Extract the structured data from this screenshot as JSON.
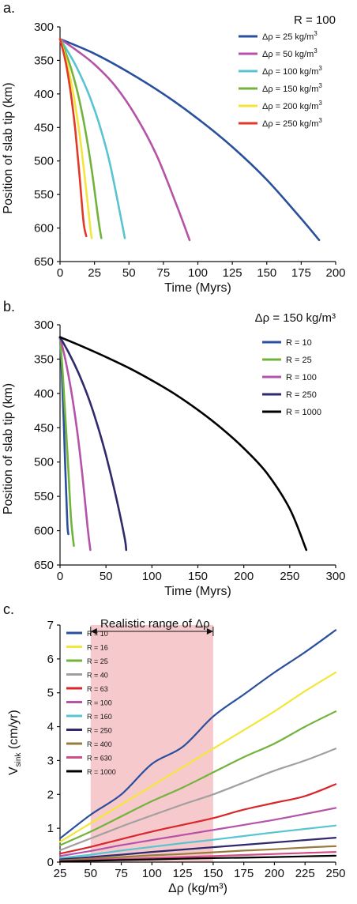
{
  "chart_data": [
    {
      "panel": "a.",
      "type": "line",
      "annotation": "R = 100",
      "xlabel": "Time (Myrs)",
      "ylabel": "Position of slab tip (km)",
      "xlim": [
        0,
        200
      ],
      "ylim": [
        300,
        650
      ],
      "y_inverted": true,
      "xticks": [
        0,
        25,
        50,
        75,
        100,
        125,
        150,
        175,
        200
      ],
      "yticks": [
        300,
        350,
        400,
        450,
        500,
        550,
        600,
        650
      ],
      "legend_position": "top-right",
      "series": [
        {
          "name": "Δρ = 25 kg/m³",
          "color": "#2a4f9c",
          "x": [
            0,
            25,
            50,
            75,
            100,
            125,
            150,
            175,
            188
          ],
          "y": [
            318,
            340,
            368,
            400,
            437,
            479,
            528,
            586,
            618
          ]
        },
        {
          "name": "Δρ = 50 kg/m³",
          "color": "#b553a8",
          "x": [
            0,
            12,
            25,
            40,
            55,
            70,
            85,
            94
          ],
          "y": [
            318,
            335,
            356,
            388,
            433,
            491,
            568,
            618
          ]
        },
        {
          "name": "Δρ = 100 kg/m³",
          "color": "#58c4d1",
          "x": [
            0,
            6,
            12,
            20,
            28,
            36,
            44,
            47
          ],
          "y": [
            318,
            338,
            360,
            396,
            442,
            502,
            583,
            615
          ]
        },
        {
          "name": "Δρ = 150 kg/m³",
          "color": "#72b33c",
          "x": [
            0,
            4,
            8,
            13,
            18,
            23,
            28,
            30
          ],
          "y": [
            318,
            338,
            362,
            400,
            450,
            513,
            590,
            615
          ]
        },
        {
          "name": "Δρ = 200 kg/m³",
          "color": "#f2e63a",
          "x": [
            0,
            3,
            6,
            10,
            14,
            18,
            22,
            23
          ],
          "y": [
            318,
            338,
            362,
            404,
            457,
            525,
            600,
            615
          ]
        },
        {
          "name": "Δρ = 250 kg/m³",
          "color": "#e0392a",
          "x": [
            0,
            2.5,
            5,
            8,
            11,
            14,
            17,
            19
          ],
          "y": [
            318,
            338,
            362,
            402,
            452,
            518,
            590,
            612
          ]
        }
      ]
    },
    {
      "panel": "b.",
      "type": "line",
      "annotation": "Δρ = 150 kg/m³",
      "xlabel": "Time (Myrs)",
      "ylabel": "Position of slab tip (km)",
      "xlim": [
        0,
        300
      ],
      "ylim": [
        300,
        650
      ],
      "y_inverted": true,
      "xticks": [
        0,
        50,
        100,
        150,
        200,
        250,
        300
      ],
      "yticks": [
        300,
        350,
        400,
        450,
        500,
        550,
        600,
        650
      ],
      "legend_position": "top-right",
      "series": [
        {
          "name": "R = 10",
          "color": "#2a4f9c",
          "x": [
            0,
            2,
            4,
            6,
            8,
            9
          ],
          "y": [
            318,
            370,
            440,
            520,
            590,
            605
          ]
        },
        {
          "name": "R = 25",
          "color": "#72b33c",
          "x": [
            0,
            3,
            6,
            9,
            12,
            15
          ],
          "y": [
            318,
            372,
            440,
            510,
            583,
            622
          ]
        },
        {
          "name": "R = 100",
          "color": "#b553a8",
          "x": [
            0,
            6,
            12,
            18,
            24,
            30,
            33
          ],
          "y": [
            318,
            352,
            395,
            448,
            515,
            595,
            628
          ]
        },
        {
          "name": "R = 250",
          "color": "#2f2a6b",
          "x": [
            0,
            10,
            20,
            30,
            40,
            50,
            60,
            70,
            72
          ],
          "y": [
            318,
            342,
            370,
            403,
            443,
            490,
            545,
            608,
            628
          ]
        },
        {
          "name": "R = 1000",
          "color": "#000000",
          "x": [
            0,
            25,
            50,
            75,
            100,
            125,
            150,
            175,
            200,
            225,
            250,
            268
          ],
          "y": [
            318,
            332,
            347,
            363,
            381,
            401,
            424,
            450,
            480,
            516,
            568,
            628
          ]
        }
      ]
    },
    {
      "panel": "c.",
      "type": "line",
      "annotation": "Realistic range of Δρ",
      "xlabel": "Δρ (kg/m³)",
      "ylabel_main": "V",
      "ylabel_sub": "sink",
      "ylabel_unit": " (cm/yr)",
      "xlim": [
        25,
        250
      ],
      "ylim": [
        0,
        7
      ],
      "xticks": [
        25,
        50,
        75,
        100,
        125,
        150,
        175,
        200,
        225,
        250
      ],
      "yticks": [
        0,
        1,
        2,
        3,
        4,
        5,
        6,
        7
      ],
      "shaded_range": [
        50,
        150
      ],
      "shade_color": "#f6c9cc",
      "legend_position": "top-left",
      "series": [
        {
          "name": "R = 10",
          "color": "#2a4f9c",
          "x": [
            25,
            50,
            75,
            100,
            125,
            150,
            175,
            200,
            225,
            250
          ],
          "y": [
            0.7,
            1.4,
            2.0,
            2.9,
            3.4,
            4.3,
            4.95,
            5.6,
            6.2,
            6.85
          ]
        },
        {
          "name": "R = 16",
          "color": "#f2e63a",
          "x": [
            25,
            50,
            75,
            100,
            125,
            150,
            175,
            200,
            225,
            250
          ],
          "y": [
            0.6,
            1.15,
            1.7,
            2.25,
            2.8,
            3.35,
            3.9,
            4.45,
            5.05,
            5.6
          ]
        },
        {
          "name": "R = 25",
          "color": "#72b33c",
          "x": [
            25,
            50,
            75,
            100,
            125,
            150,
            175,
            200,
            225,
            250
          ],
          "y": [
            0.5,
            0.9,
            1.35,
            1.8,
            2.2,
            2.65,
            3.1,
            3.5,
            4.0,
            4.45
          ]
        },
        {
          "name": "R = 40",
          "color": "#a0a0a0",
          "x": [
            25,
            50,
            75,
            100,
            125,
            150,
            175,
            200,
            225,
            250
          ],
          "y": [
            0.35,
            0.7,
            1.05,
            1.38,
            1.7,
            2.0,
            2.35,
            2.7,
            3.0,
            3.35
          ]
        },
        {
          "name": "R = 63",
          "color": "#d9262b",
          "x": [
            25,
            50,
            75,
            100,
            125,
            150,
            175,
            200,
            225,
            250
          ],
          "y": [
            0.25,
            0.45,
            0.68,
            0.9,
            1.1,
            1.3,
            1.55,
            1.75,
            1.95,
            2.3
          ]
        },
        {
          "name": "R = 100",
          "color": "#b553a8",
          "x": [
            25,
            50,
            75,
            100,
            125,
            150,
            175,
            200,
            225,
            250
          ],
          "y": [
            0.18,
            0.33,
            0.5,
            0.65,
            0.8,
            0.95,
            1.1,
            1.25,
            1.42,
            1.6
          ]
        },
        {
          "name": "R = 160",
          "color": "#58c4d1",
          "x": [
            25,
            50,
            75,
            100,
            125,
            150,
            175,
            200,
            225,
            250
          ],
          "y": [
            0.12,
            0.22,
            0.34,
            0.45,
            0.56,
            0.66,
            0.77,
            0.88,
            0.98,
            1.08
          ]
        },
        {
          "name": "R = 250",
          "color": "#2f2a6b",
          "x": [
            25,
            50,
            75,
            100,
            125,
            150,
            175,
            200,
            225,
            250
          ],
          "y": [
            0.08,
            0.15,
            0.22,
            0.3,
            0.37,
            0.44,
            0.51,
            0.58,
            0.65,
            0.72
          ]
        },
        {
          "name": "R = 400",
          "color": "#9a7b3e",
          "x": [
            25,
            50,
            75,
            100,
            125,
            150,
            175,
            200,
            225,
            250
          ],
          "y": [
            0.05,
            0.1,
            0.15,
            0.2,
            0.24,
            0.29,
            0.34,
            0.38,
            0.43,
            0.47
          ]
        },
        {
          "name": "R = 630",
          "color": "#d14d86",
          "x": [
            25,
            50,
            75,
            100,
            125,
            150,
            175,
            200,
            225,
            250
          ],
          "y": [
            0.03,
            0.06,
            0.09,
            0.12,
            0.15,
            0.18,
            0.21,
            0.24,
            0.27,
            0.3
          ]
        },
        {
          "name": "R = 1000",
          "color": "#000000",
          "x": [
            25,
            50,
            75,
            100,
            125,
            150,
            175,
            200,
            225,
            250
          ],
          "y": [
            0.02,
            0.04,
            0.06,
            0.08,
            0.1,
            0.12,
            0.13,
            0.15,
            0.17,
            0.19
          ]
        }
      ]
    }
  ]
}
